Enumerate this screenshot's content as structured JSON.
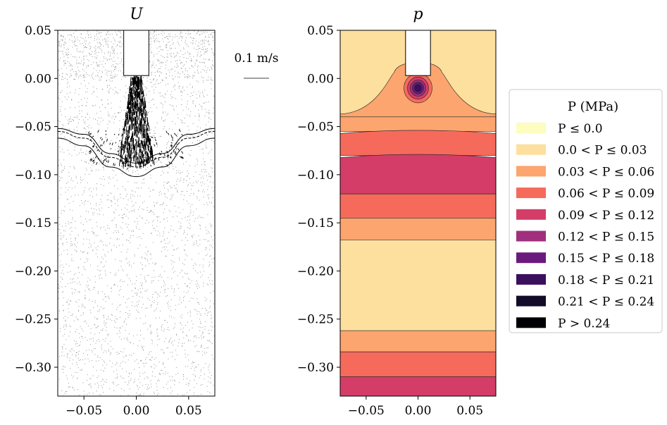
{
  "chart_data": [
    {
      "type": "scatter",
      "title": "U",
      "xlabel": "",
      "ylabel": "",
      "xlim": [
        -0.075,
        0.075
      ],
      "ylim": [
        -0.33,
        0.05
      ],
      "xticks": [
        -0.05,
        0.0,
        0.05
      ],
      "xtick_labels": [
        "−0.05",
        "0.00",
        "0.05"
      ],
      "yticks": [
        0.05,
        0.0,
        -0.05,
        -0.1,
        -0.15,
        -0.2,
        -0.25,
        -0.3
      ],
      "ytick_labels": [
        "0.05",
        "0.00",
        "−0.05",
        "−0.10",
        "−0.15",
        "−0.20",
        "−0.25",
        "−0.30"
      ],
      "grid": false,
      "nozzle": {
        "x": [
          -0.012,
          0.012
        ],
        "y_bottom": 0.003
      },
      "front_curves": [
        {
          "x": [
            -0.075,
            -0.05,
            -0.025,
            0.0,
            0.025,
            0.05,
            0.075
          ],
          "y": [
            -0.052,
            -0.058,
            -0.078,
            -0.088,
            -0.078,
            -0.058,
            -0.052
          ]
        },
        {
          "x": [
            -0.075,
            -0.05,
            -0.025,
            0.0,
            0.025,
            0.05,
            0.075
          ],
          "y": [
            -0.055,
            -0.062,
            -0.082,
            -0.092,
            -0.082,
            -0.062,
            -0.055
          ]
        },
        {
          "x": [
            -0.075,
            -0.05,
            -0.025,
            0.0,
            0.025,
            0.05,
            0.075
          ],
          "y": [
            -0.062,
            -0.07,
            -0.092,
            -0.102,
            -0.092,
            -0.07,
            -0.062
          ]
        }
      ],
      "scale_arrow": {
        "label": "0.1 m/s"
      }
    },
    {
      "type": "heatmap",
      "title": "p",
      "xlabel": "",
      "ylabel": "",
      "xlim": [
        -0.075,
        0.075
      ],
      "ylim": [
        -0.33,
        0.05
      ],
      "xticks": [
        -0.05,
        0.0,
        0.05
      ],
      "xtick_labels": [
        "−0.05",
        "0.00",
        "0.05"
      ],
      "yticks": [
        0.05,
        0.0,
        -0.05,
        -0.1,
        -0.15,
        -0.2,
        -0.25,
        -0.3
      ],
      "ytick_labels": [
        "0.05",
        "0.00",
        "−0.05",
        "−0.10",
        "−0.15",
        "−0.20",
        "−0.25",
        "−0.30"
      ],
      "grid": false,
      "legend_position": "right",
      "legend_title": "P (MPa)",
      "nozzle": {
        "x": [
          -0.012,
          0.012
        ],
        "y_bottom": 0.003
      },
      "levels": [
        {
          "label": "P ≤ 0.0",
          "color": "#fcfdbf"
        },
        {
          "label": "0.0 < P ≤ 0.03",
          "color": "#fddf9e"
        },
        {
          "label": "0.03 < P ≤ 0.06",
          "color": "#fca56e"
        },
        {
          "label": "0.06 < P ≤ 0.09",
          "color": "#f66a5c"
        },
        {
          "label": "0.09 < P ≤ 0.12",
          "color": "#d43d68"
        },
        {
          "label": "0.12 < P ≤ 0.15",
          "color": "#a0307e"
        },
        {
          "label": "0.15 < P ≤ 0.18",
          "color": "#6a1a7c"
        },
        {
          "label": "0.18 < P ≤ 0.21",
          "color": "#3a0f5c"
        },
        {
          "label": "0.21 < P ≤ 0.24",
          "color": "#120c2a"
        },
        {
          "label": "P > 0.24",
          "color": "#000004"
        }
      ],
      "bands": [
        {
          "y_top": 0.05,
          "y_bottom": -0.037,
          "level": 1
        },
        {
          "y_top": -0.037,
          "y_bottom": -0.055,
          "level": 2
        },
        {
          "y_top": -0.055,
          "y_bottom": -0.08,
          "level": 3
        },
        {
          "y_top": -0.08,
          "y_bottom": -0.12,
          "level": 4
        },
        {
          "y_top": -0.12,
          "y_bottom": -0.145,
          "level": 3
        },
        {
          "y_top": -0.145,
          "y_bottom": -0.168,
          "level": 2
        },
        {
          "y_top": -0.168,
          "y_bottom": -0.262,
          "level": 1
        },
        {
          "y_top": -0.262,
          "y_bottom": -0.284,
          "level": 2
        },
        {
          "y_top": -0.284,
          "y_bottom": -0.31,
          "level": 3
        },
        {
          "y_top": -0.31,
          "y_bottom": -0.33,
          "level": 4
        }
      ]
    }
  ]
}
